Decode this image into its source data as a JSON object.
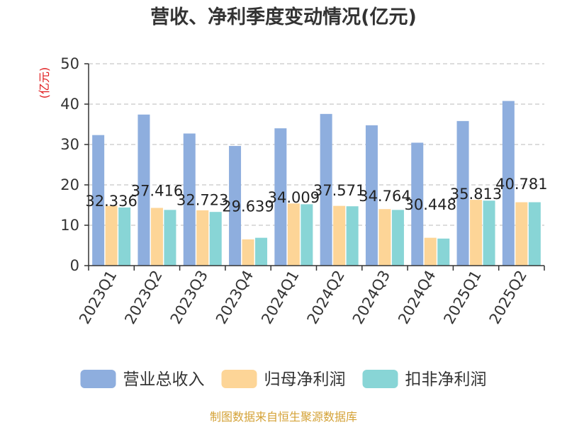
{
  "chart_data": {
    "type": "bar",
    "title": "营收、净利季度变动情况(亿元)",
    "ylabel": "(亿元)",
    "ylim": [
      0,
      50
    ],
    "yticks": [
      0,
      10,
      20,
      30,
      40,
      50
    ],
    "grid": true,
    "legend_position": "bottom",
    "categories": [
      "2023Q1",
      "2023Q2",
      "2023Q3",
      "2023Q4",
      "2024Q1",
      "2024Q2",
      "2024Q3",
      "2024Q4",
      "2025Q1",
      "2025Q2"
    ],
    "series": [
      {
        "name": "营业总收入",
        "color": "#8eaede",
        "values": [
          32.336,
          37.416,
          32.723,
          29.639,
          34.009,
          37.571,
          34.764,
          30.448,
          35.813,
          40.781
        ],
        "labels": [
          "32.336",
          "37.416",
          "32.723",
          "29.639",
          "34.009",
          "37.571",
          "34.764",
          "30.448",
          "35.813",
          "40.781"
        ]
      },
      {
        "name": "归母净利润",
        "color": "#fdd597",
        "values": [
          14.8,
          14.3,
          13.7,
          6.5,
          15.4,
          14.8,
          14.0,
          6.9,
          16.3,
          15.7
        ]
      },
      {
        "name": "扣非净利润",
        "color": "#88d5d6",
        "values": [
          14.4,
          13.8,
          13.3,
          6.9,
          15.2,
          14.7,
          13.8,
          6.7,
          16.1,
          15.7
        ]
      }
    ]
  },
  "source": "制图数据来自恒生聚源数据库"
}
